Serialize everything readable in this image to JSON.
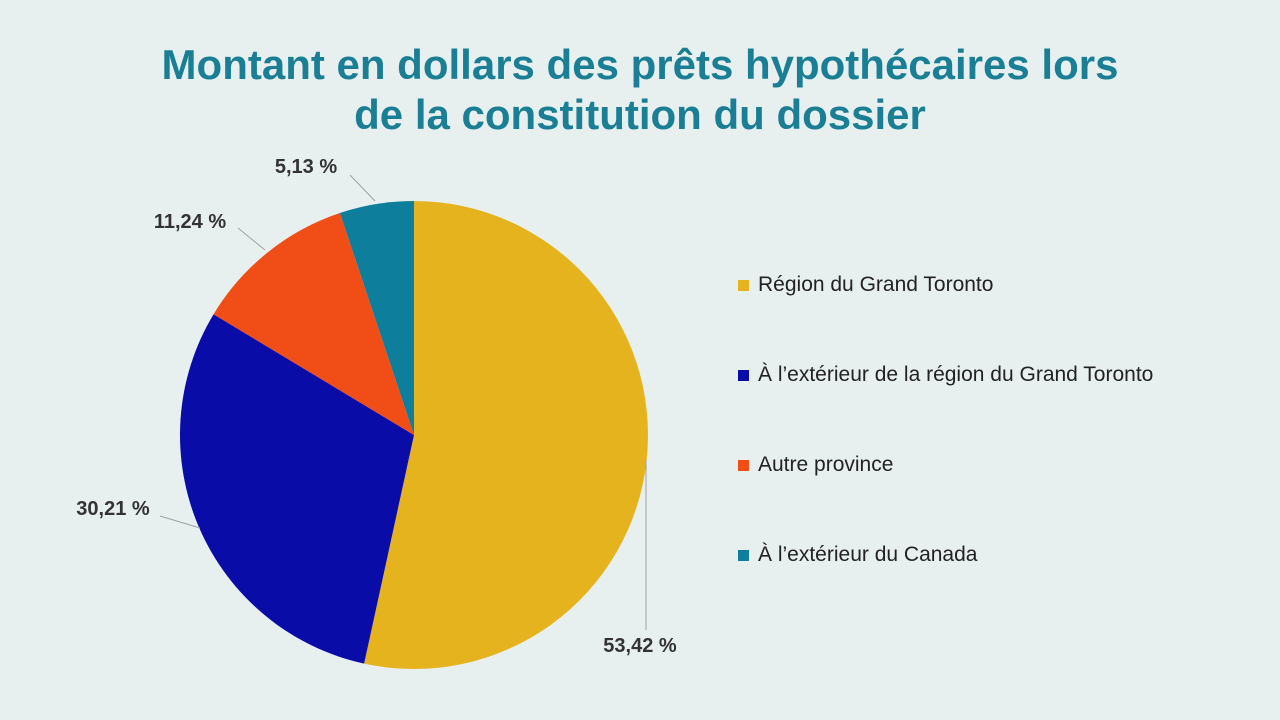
{
  "slide": {
    "title_line1": "Montant en dollars des prêts hypothécaires lors",
    "title_line2": "de la constitution du dossier",
    "title_color": "#1a7f95",
    "background": "#e8efef"
  },
  "chart_data": {
    "type": "pie",
    "title": "Montant en dollars des prêts hypothécaires lors de la constitution du dossier",
    "legend_position": "right",
    "start_angle_deg": 0,
    "direction": "clockwise",
    "slices": [
      {
        "label": "Région du Grand Toronto",
        "value": 53.42,
        "display": "53,42 %",
        "color": "#e5b31e"
      },
      {
        "label": "À  l’extérieur de la région du Grand Toronto",
        "value": 30.21,
        "display": "30,21 %",
        "color": "#0a0ca8"
      },
      {
        "label": "Autre province",
        "value": 11.24,
        "display": "11,24 %",
        "color": "#f04e16"
      },
      {
        "label": "À  l’extérieur du Canada",
        "value": 5.13,
        "display": "5,13 %",
        "color": "#0d7f9c"
      }
    ]
  }
}
